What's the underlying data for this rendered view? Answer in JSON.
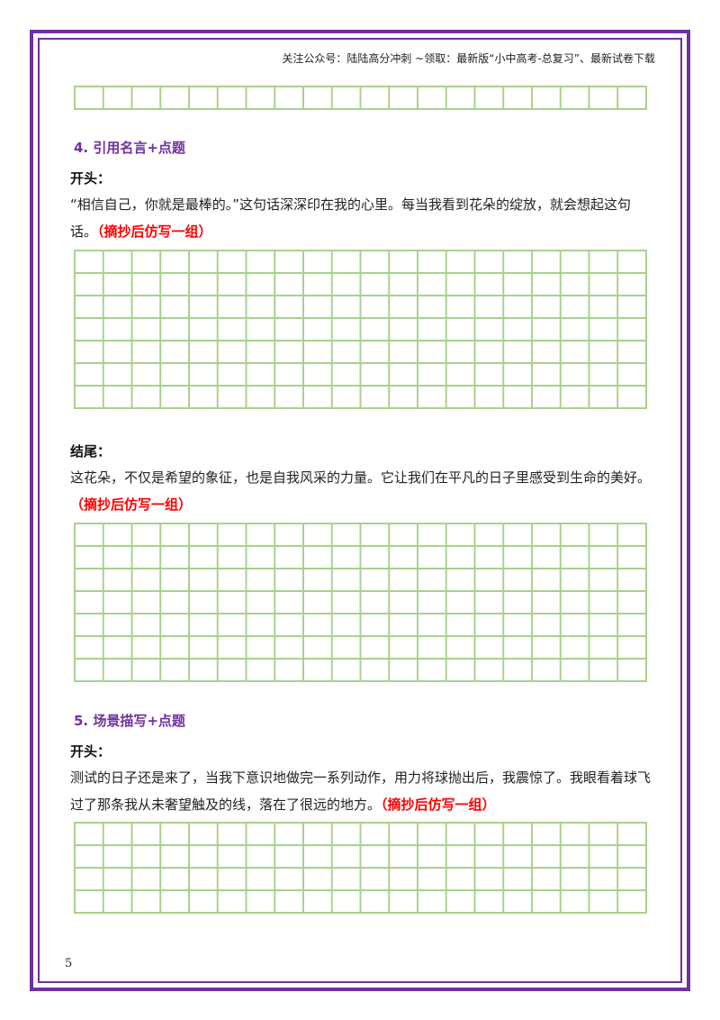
{
  "header": {
    "text": "关注公众号：陆陆高分冲刺 ~领取：最新版“小中高考-总复习”、最新试卷下载"
  },
  "sections": [
    {
      "title": "4. 引用名言+点题",
      "opening_label": "开头：",
      "opening_text": "“相信自己，你就是最棒的。”这句话深深印在我的心里。每当我看到花朵的绽放，就会想起这句话。",
      "opening_prompt": "（摘抄后仿写一组）",
      "ending_label": "结尾：",
      "ending_text": "这花朵，不仅是希望的象征，也是自我风采的力量。它让我们在平凡的日子里感受到生命的美好。",
      "ending_prompt": "（摘抄后仿写一组）"
    },
    {
      "title": "5. 场景描写+点题",
      "opening_label": "开头：",
      "opening_text": "测试的日子还是来了，当我下意识地做完一系列动作，用力将球抛出后，我震惊了。我眼看着球飞过了那条我从未奢望触及的线，落在了很远的地方。",
      "opening_prompt": "（摘抄后仿写一组）"
    }
  ],
  "page_number": "5",
  "colors": {
    "frame": "#7030a0",
    "grid": "#a9d18e",
    "title": "#7030a0",
    "prompt": "#ff0000"
  }
}
